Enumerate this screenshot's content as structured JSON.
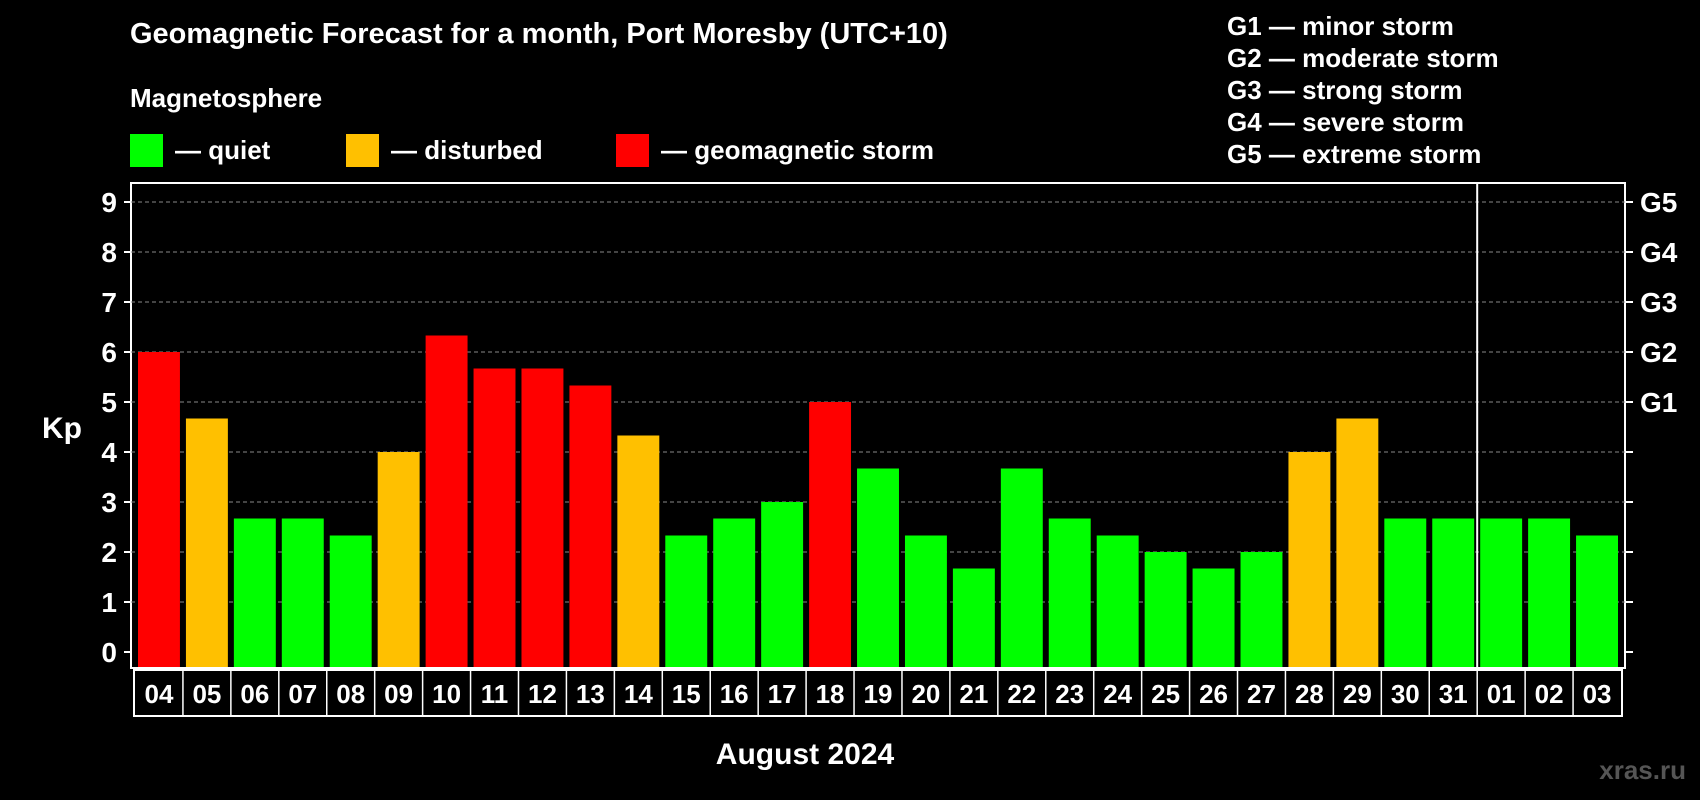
{
  "title": "Geomagnetic Forecast for a month, Port Moresby (UTC+10)",
  "subtitle": "Magnetosphere",
  "legend": [
    {
      "label": "— quiet",
      "color": "#00ff00"
    },
    {
      "label": "— disturbed",
      "color": "#ffc000"
    },
    {
      "label": "— geomagnetic storm",
      "color": "#ff0000"
    }
  ],
  "storm_scale": [
    "G1 — minor storm",
    "G2 — moderate storm",
    "G3 — strong storm",
    "G4 — severe storm",
    "G5 — extreme storm"
  ],
  "watermark": "xras.ru",
  "chart_data": {
    "type": "bar",
    "title": "Geomagnetic Forecast for a month, Port Moresby (UTC+10)",
    "xlabel": "August 2024",
    "ylabel": "Kp",
    "ylim": [
      0,
      9
    ],
    "yticks": [
      0,
      1,
      2,
      3,
      4,
      5,
      6,
      7,
      8,
      9
    ],
    "right_ticks": [
      {
        "value": 5,
        "label": "G1"
      },
      {
        "value": 6,
        "label": "G2"
      },
      {
        "value": 7,
        "label": "G3"
      },
      {
        "value": 8,
        "label": "G4"
      },
      {
        "value": 9,
        "label": "G5"
      }
    ],
    "month_divider_after": "31",
    "categories": [
      "04",
      "05",
      "06",
      "07",
      "08",
      "09",
      "10",
      "11",
      "12",
      "13",
      "14",
      "15",
      "16",
      "17",
      "18",
      "19",
      "20",
      "21",
      "22",
      "23",
      "24",
      "25",
      "26",
      "27",
      "28",
      "29",
      "30",
      "31",
      "01",
      "02",
      "03"
    ],
    "values": [
      6.0,
      4.67,
      2.67,
      2.67,
      2.33,
      4.0,
      6.33,
      5.67,
      5.67,
      5.33,
      4.33,
      2.33,
      2.67,
      3.0,
      5.0,
      3.67,
      2.33,
      1.67,
      3.67,
      2.67,
      2.33,
      2.0,
      1.67,
      2.0,
      4.0,
      4.67,
      2.67,
      2.67,
      2.67,
      2.67,
      2.33
    ],
    "status": [
      "storm",
      "disturbed",
      "quiet",
      "quiet",
      "quiet",
      "disturbed",
      "storm",
      "storm",
      "storm",
      "storm",
      "disturbed",
      "quiet",
      "quiet",
      "quiet",
      "storm",
      "quiet",
      "quiet",
      "quiet",
      "quiet",
      "quiet",
      "quiet",
      "quiet",
      "quiet",
      "quiet",
      "disturbed",
      "disturbed",
      "quiet",
      "quiet",
      "quiet",
      "quiet",
      "quiet"
    ],
    "colors": {
      "quiet": "#00ff00",
      "disturbed": "#ffc000",
      "storm": "#ff0000"
    }
  }
}
